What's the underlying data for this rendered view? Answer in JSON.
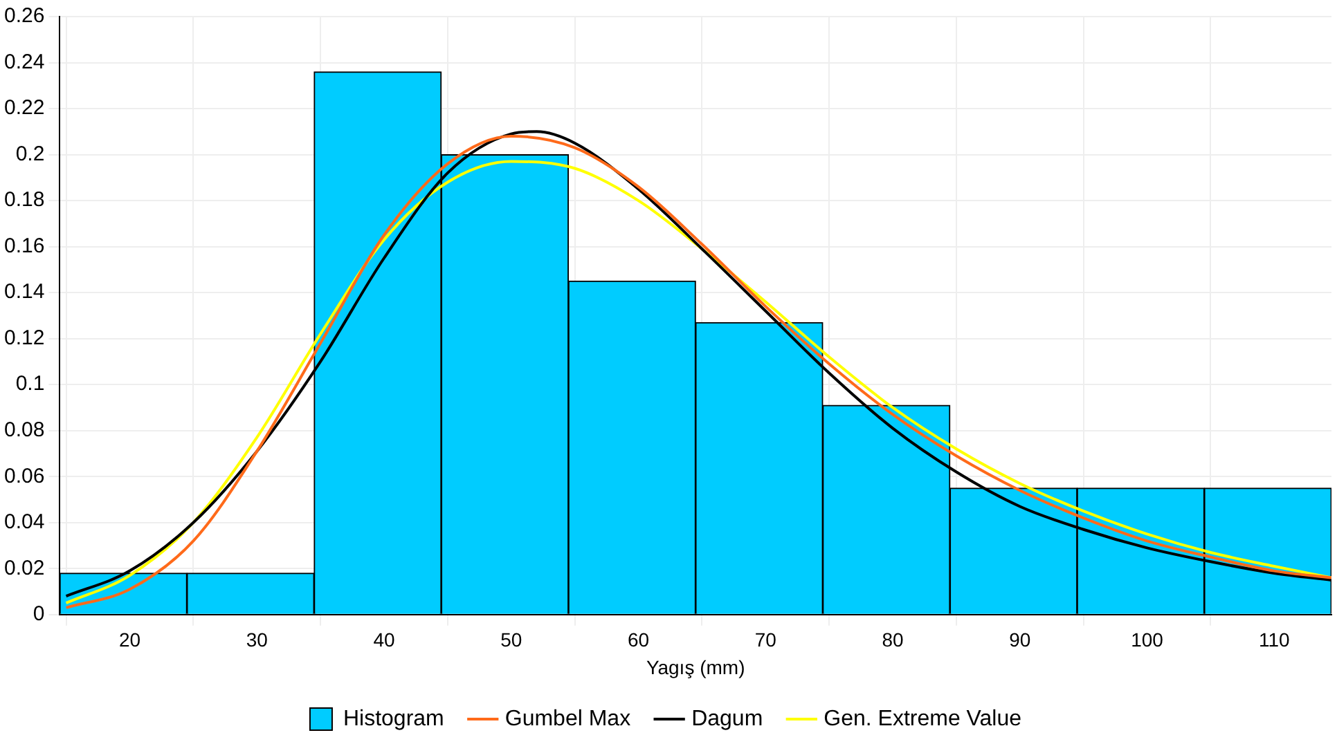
{
  "chart_data": {
    "type": "histogram",
    "xlabel": "Yagış (mm)",
    "bins": [
      14.5,
      24.5,
      34.5,
      44.5,
      54.5,
      64.5,
      74.5,
      84.5,
      94.5,
      104.5,
      114.5
    ],
    "xlim": [
      14.5,
      114.5
    ],
    "xticks": [
      20,
      30,
      40,
      50,
      60,
      70,
      80,
      90,
      100,
      110
    ],
    "ylim": [
      0,
      0.26
    ],
    "yticks": [
      0,
      0.02,
      0.04,
      0.06,
      0.08,
      0.1,
      0.12,
      0.14,
      0.16,
      0.18,
      0.2,
      0.22,
      0.24,
      0.26
    ],
    "grid": true,
    "legend": "bottom",
    "series": [
      {
        "name": "Histogram",
        "color": "#00ccff",
        "values": [
          0.018,
          0.018,
          0.236,
          0.2,
          0.145,
          0.127,
          0.091,
          0.055,
          0.055,
          0.055
        ]
      },
      {
        "name": "Gumbel Max",
        "type": "line",
        "color": "#ff6a1a",
        "x": [
          15,
          20,
          25,
          30,
          35,
          40,
          45,
          50,
          55,
          60,
          65,
          70,
          75,
          80,
          85,
          90,
          95,
          100,
          105,
          110,
          114.5
        ],
        "values": [
          0.003,
          0.011,
          0.032,
          0.071,
          0.118,
          0.165,
          0.196,
          0.208,
          0.203,
          0.186,
          0.161,
          0.134,
          0.109,
          0.087,
          0.069,
          0.054,
          0.042,
          0.032,
          0.025,
          0.019,
          0.016
        ]
      },
      {
        "name": "Dagum",
        "type": "line",
        "color": "#000000",
        "x": [
          15,
          20,
          25,
          30,
          35,
          40,
          45,
          50,
          52,
          55,
          60,
          65,
          70,
          75,
          80,
          85,
          90,
          95,
          100,
          105,
          110,
          114.5
        ],
        "values": [
          0.008,
          0.019,
          0.04,
          0.071,
          0.11,
          0.155,
          0.192,
          0.209,
          0.21,
          0.205,
          0.185,
          0.159,
          0.132,
          0.105,
          0.081,
          0.062,
          0.047,
          0.037,
          0.029,
          0.023,
          0.018,
          0.015
        ]
      },
      {
        "name": "Gen. Extreme Value",
        "type": "line",
        "color": "#ffff00",
        "x": [
          15,
          20,
          25,
          30,
          35,
          40,
          45,
          50,
          55,
          60,
          65,
          70,
          75,
          80,
          85,
          90,
          95,
          100,
          105,
          110,
          114.5
        ],
        "values": [
          0.005,
          0.017,
          0.04,
          0.077,
          0.122,
          0.163,
          0.188,
          0.197,
          0.194,
          0.18,
          0.159,
          0.136,
          0.112,
          0.09,
          0.072,
          0.057,
          0.045,
          0.035,
          0.027,
          0.021,
          0.016
        ]
      }
    ]
  }
}
